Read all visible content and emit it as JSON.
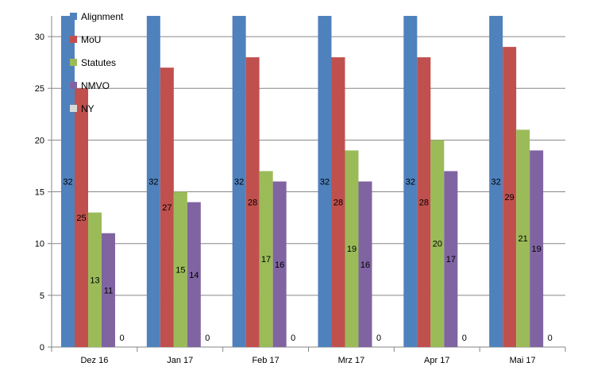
{
  "chart_data": {
    "type": "bar",
    "categories": [
      "Dez 16",
      "Jan 17",
      "Feb 17",
      "Mrz 17",
      "Apr 17",
      "Mai 17"
    ],
    "series": [
      {
        "name": "Alignment",
        "color": "#4F81BD",
        "values": [
          32,
          32,
          32,
          32,
          32,
          32
        ]
      },
      {
        "name": "MoU",
        "color": "#C0504D",
        "values": [
          25,
          27,
          28,
          28,
          28,
          29
        ]
      },
      {
        "name": "Statutes",
        "color": "#9BBB59",
        "values": [
          13,
          15,
          17,
          19,
          20,
          21
        ]
      },
      {
        "name": "NMVO",
        "color": "#8064A2",
        "values": [
          11,
          14,
          16,
          16,
          17,
          19
        ]
      },
      {
        "name": "NY",
        "color": "#D9D9D9",
        "values": [
          0,
          0,
          0,
          0,
          0,
          0
        ]
      }
    ],
    "ylim": [
      0,
      32
    ],
    "yticks": [
      0,
      5,
      10,
      15,
      20,
      25,
      30
    ],
    "grid": true,
    "legend": "top-left"
  }
}
